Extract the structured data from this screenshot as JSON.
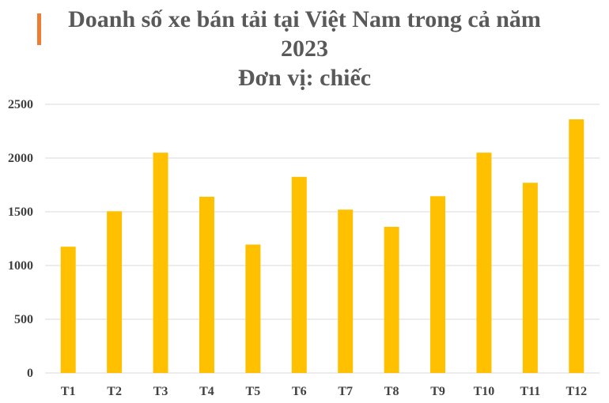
{
  "title_line1": "Doanh số xe bán tải tại Việt Nam trong cả năm",
  "title_line2": "2023",
  "title_line3": "Đơn vị: chiếc",
  "colors": {
    "bar": "#FFC000",
    "accent": "#ED7D31",
    "grid": "#D9D9D9",
    "title": "#595959"
  },
  "chart_data": {
    "type": "bar",
    "title": "Doanh số xe bán tải tại Việt Nam trong cả năm 2023",
    "subtitle": "Đơn vị: chiếc",
    "xlabel": "",
    "ylabel": "",
    "categories": [
      "T1",
      "T2",
      "T3",
      "T4",
      "T5",
      "T6",
      "T7",
      "T8",
      "T9",
      "T10",
      "T11",
      "T12"
    ],
    "values": [
      1175,
      1505,
      2050,
      1640,
      1195,
      1825,
      1520,
      1360,
      1645,
      2050,
      1770,
      2360
    ],
    "ylim": [
      0,
      2500
    ],
    "yticks": [
      0,
      500,
      1000,
      1500,
      2000,
      2500
    ],
    "grid": true,
    "legend": "none"
  }
}
